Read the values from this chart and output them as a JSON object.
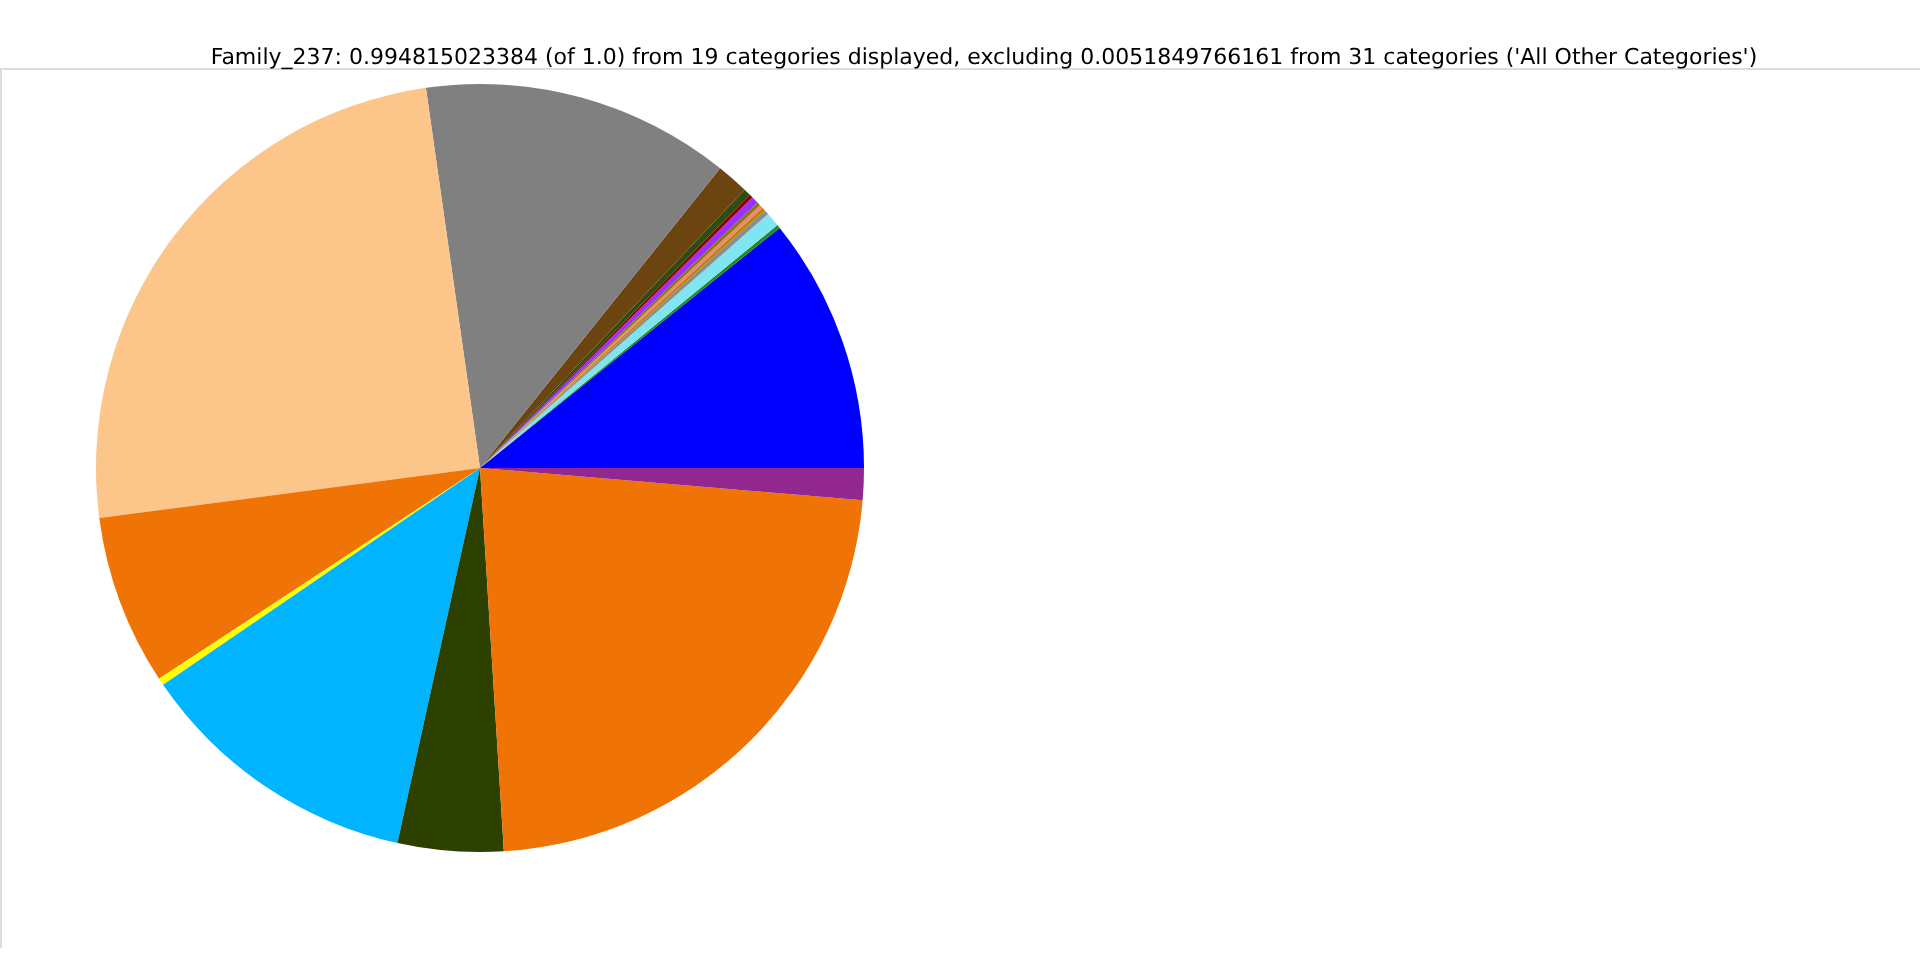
{
  "chart_data": {
    "type": "pie",
    "title": "Family_237: 0.994815023384 (of 1.0) from 19 categories displayed, excluding 0.0051849766161 from 31 categories ('All Other Categories')",
    "categories": [
      null,
      null,
      null,
      null,
      null,
      null,
      null,
      null,
      null,
      null,
      null,
      null,
      null,
      null,
      null,
      null,
      null,
      null,
      null
    ],
    "values": [
      10.75,
      0.15,
      0.6,
      0.2,
      0.15,
      0.15,
      0.15,
      0.3,
      0.15,
      0.3,
      1.35,
      13.0,
      24.83,
      7.17,
      0.3,
      12.0,
      4.44,
      22.67,
      1.34
    ],
    "colors": [
      "#0000ff",
      "#228b22",
      "#7fe5f0",
      "#8c8c8c",
      "#b8860b",
      "#fa8072",
      "#808000",
      "#9b30ff",
      "#8b0000",
      "#2e4d0e",
      "#6b4410",
      "#808080",
      "#fcc68b",
      "#f07305",
      "#ffff00",
      "#00b4ff",
      "#2c4000",
      "#f07305",
      "#91278f"
    ],
    "legend": false
  }
}
